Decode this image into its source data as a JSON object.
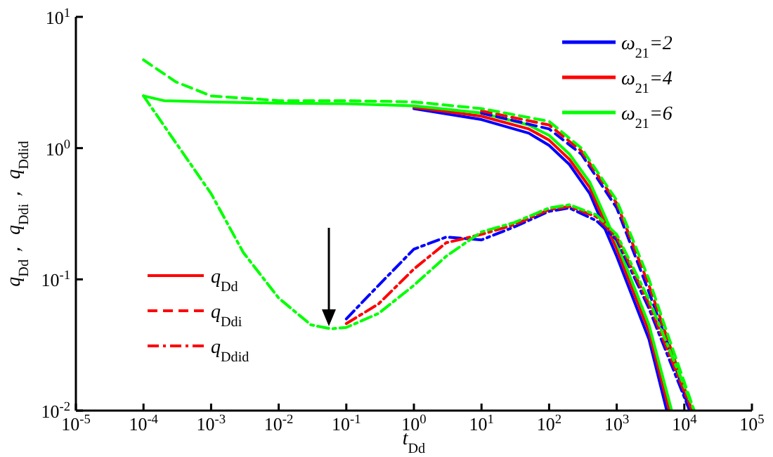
{
  "chart_data": {
    "type": "line",
    "xlabel": "t$_{Dd}$",
    "ylabel": "q$_{Dd}$， q$_{Ddi}$， q$_{Ddid}$",
    "log": "xy",
    "xlim": [
      1e-05,
      100000
    ],
    "ylim": [
      0.01,
      10
    ],
    "xticks": [
      {
        "value": 1e-05,
        "label": "10$^{-5}$"
      },
      {
        "value": 0.0001,
        "label": "10$^{-4}$"
      },
      {
        "value": 0.001,
        "label": "10$^{-3}$"
      },
      {
        "value": 0.01,
        "label": "10$^{-2}$"
      },
      {
        "value": 0.1,
        "label": "10$^{-1}$"
      },
      {
        "value": 1,
        "label": "10$^{0}$"
      },
      {
        "value": 10,
        "label": "10$^{1}$"
      },
      {
        "value": 100,
        "label": "10$^{2}$"
      },
      {
        "value": 1000,
        "label": "10$^{3}$"
      },
      {
        "value": 10000,
        "label": "10$^{4}$"
      },
      {
        "value": 100000,
        "label": "10$^{5}$"
      }
    ],
    "yticks": [
      {
        "value": 0.01,
        "label": "10$^{-2}$"
      },
      {
        "value": 0.1,
        "label": "10$^{-1}$"
      },
      {
        "value": 1,
        "label": "10$^{0}$"
      },
      {
        "value": 10,
        "label": "10$^{1}$"
      }
    ],
    "legend": "top right",
    "grid": false,
    "annotations": [
      "q$_{Dd}$",
      "q$_{Ddi}$",
      "q$_{Ddid}$"
    ],
    "series": [
      {
        "name": "ω$_{21}$=2",
        "color": "#0000ff",
        "line_style": "solid",
        "x": [
          1,
          10,
          50,
          100,
          200,
          400,
          1000,
          3000,
          5500
        ],
        "values": [
          2.0,
          1.65,
          1.3,
          1.05,
          0.75,
          0.45,
          0.15,
          0.035,
          0.01
        ]
      },
      {
        "name": "ω$_{21}$=4",
        "color": "#ff0000",
        "line_style": "solid",
        "x": [
          1,
          10,
          50,
          100,
          200,
          400,
          1000,
          3000,
          6000
        ],
        "values": [
          2.05,
          1.75,
          1.4,
          1.15,
          0.82,
          0.5,
          0.17,
          0.04,
          0.01
        ]
      },
      {
        "name": "ω$_{21}$=6",
        "color": "#00ff00",
        "line_style": "solid",
        "x": [
          0.0001,
          0.0002,
          0.001,
          0.01,
          0.1,
          1,
          10,
          50,
          100,
          200,
          400,
          1000,
          3000,
          6500
        ],
        "values": [
          2.5,
          2.3,
          2.25,
          2.2,
          2.18,
          2.1,
          1.85,
          1.5,
          1.25,
          0.9,
          0.55,
          0.19,
          0.045,
          0.01
        ]
      },
      {
        "color": "#0000ff",
        "line_style": "dashed",
        "x": [
          10,
          100,
          300,
          1000,
          3000,
          6000,
          12000
        ],
        "values": [
          1.85,
          1.4,
          0.9,
          0.35,
          0.08,
          0.03,
          0.01
        ]
      },
      {
        "color": "#ff0000",
        "line_style": "dashed",
        "x": [
          10,
          100,
          300,
          1000,
          3000,
          6000,
          13000
        ],
        "values": [
          1.92,
          1.5,
          0.95,
          0.38,
          0.09,
          0.032,
          0.01
        ]
      },
      {
        "color": "#00ff00",
        "line_style": "dashed",
        "x": [
          0.0001,
          0.0003,
          0.001,
          0.01,
          0.1,
          1,
          10,
          100,
          300,
          1000,
          3000,
          6000,
          14000
        ],
        "values": [
          4.7,
          3.2,
          2.5,
          2.3,
          2.3,
          2.25,
          2.0,
          1.6,
          1.0,
          0.4,
          0.1,
          0.035,
          0.01
        ]
      },
      {
        "color": "#0000ff",
        "line_style": "dashdot",
        "x": [
          0.1,
          0.3,
          1,
          3,
          10,
          30,
          100,
          200,
          500,
          1000,
          3000,
          12000
        ],
        "values": [
          0.05,
          0.09,
          0.17,
          0.21,
          0.2,
          0.25,
          0.33,
          0.35,
          0.28,
          0.2,
          0.06,
          0.01
        ]
      },
      {
        "color": "#ff0000",
        "line_style": "dashdot",
        "x": [
          0.1,
          0.3,
          1,
          3,
          10,
          30,
          100,
          200,
          500,
          1000,
          3000,
          13000
        ],
        "values": [
          0.046,
          0.065,
          0.12,
          0.19,
          0.22,
          0.26,
          0.34,
          0.36,
          0.3,
          0.21,
          0.065,
          0.01
        ]
      },
      {
        "color": "#00ff00",
        "line_style": "dashdot",
        "x": [
          0.0001,
          0.0003,
          0.001,
          0.003,
          0.01,
          0.03,
          0.06,
          0.1,
          0.3,
          1,
          3,
          10,
          30,
          100,
          200,
          500,
          1000,
          3000,
          14000
        ],
        "values": [
          2.5,
          1.1,
          0.45,
          0.16,
          0.072,
          0.045,
          0.042,
          0.043,
          0.055,
          0.09,
          0.15,
          0.23,
          0.27,
          0.35,
          0.37,
          0.31,
          0.22,
          0.07,
          0.01
        ]
      }
    ]
  }
}
